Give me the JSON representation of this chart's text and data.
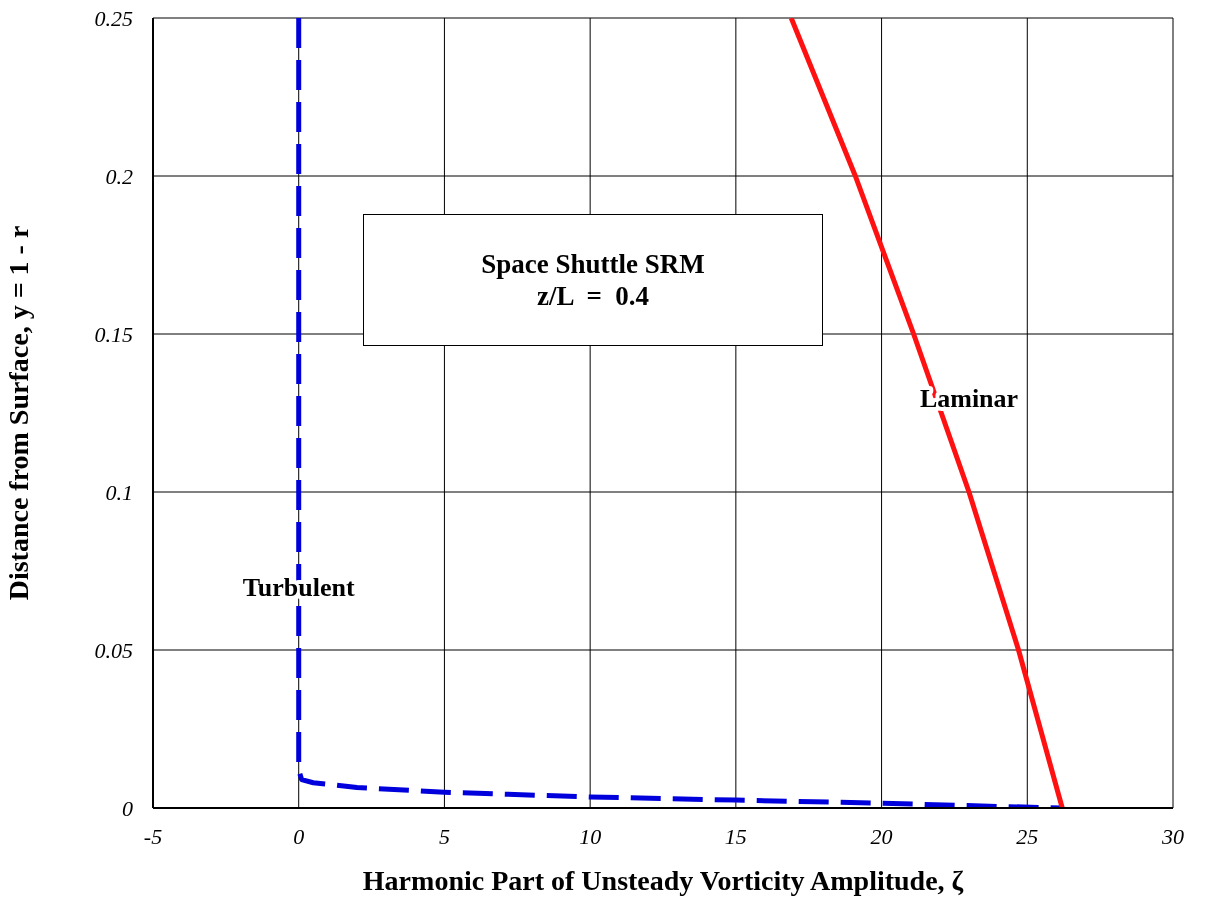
{
  "chart_data": {
    "type": "line",
    "xlabel": "Harmonic Part of Unsteady Vorticity Amplitude, ζ",
    "ylabel": "Distance from Surface, y = 1 - r",
    "annotations": [
      "Space Shuttle SRM",
      "z/L  =  0.4"
    ],
    "series": [
      {
        "name": "Turbulent",
        "color": "#0000dd",
        "line_style": "dashed",
        "x": [
          0,
          0,
          0.1,
          0.5,
          2,
          5,
          10,
          15,
          20,
          24,
          26.2
        ],
        "values": [
          0.25,
          0.012,
          0.009,
          0.008,
          0.0065,
          0.005,
          0.0035,
          0.0025,
          0.0015,
          0.0005,
          0
        ]
      },
      {
        "name": "Laminar",
        "color": "#ff1111",
        "line_style": "solid",
        "x": [
          26.2,
          24.7,
          23.0,
          21.1,
          19.1,
          16.9
        ],
        "values": [
          0,
          0.05,
          0.1,
          0.15,
          0.2,
          0.25
        ]
      }
    ],
    "xlim": [
      -5,
      30
    ],
    "xticks": [
      -5,
      0,
      5,
      10,
      15,
      20,
      25,
      30
    ],
    "ylim": [
      0,
      0.25
    ],
    "yticks": [
      0,
      0.05,
      0.1,
      0.15,
      0.2,
      0.25
    ],
    "grid": true,
    "legend": false,
    "marker": "none"
  }
}
